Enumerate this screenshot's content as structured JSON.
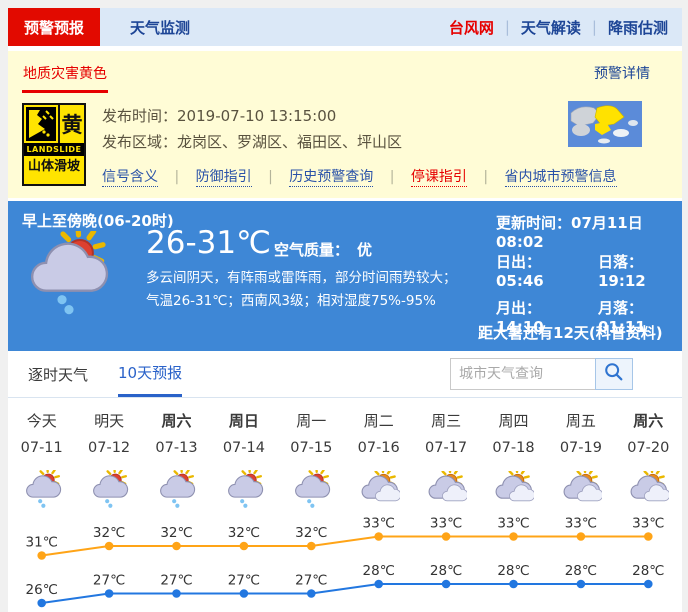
{
  "nav": {
    "tab_active": "预警预报",
    "tab_monitor": "天气监测",
    "links": [
      "台风网",
      "天气解读",
      "降雨估测"
    ]
  },
  "warning": {
    "category": "地质灾害黄色",
    "details_link": "预警详情",
    "sign": {
      "badge": "黄",
      "en": "LANDSLIDE",
      "name": "山体滑坡"
    },
    "publish_time_label": "发布时间：",
    "publish_time": "2019-07-10 13:15:00",
    "area_label": "发布区域：",
    "areas": "龙岗区、罗湖区、福田区、坪山区",
    "links": [
      "信号含义",
      "防御指引",
      "历史预警查询",
      "停课指引",
      "省内城市预警信息"
    ]
  },
  "current": {
    "period": "早上至傍晚(06-20时)",
    "update": "更新时间：07月11日 08:02",
    "temp": "26-31℃",
    "air_label": "空气质量：",
    "air_value": "优",
    "desc1": "多云间阴天，有阵雨或雷阵雨，部分时间雨势较大；",
    "desc2": "气温26-31℃；西南风3级；相对湿度75%-95%",
    "sun": [
      {
        "label": "日出：",
        "value": "05:46"
      },
      {
        "label": "日落：",
        "value": "19:12"
      },
      {
        "label": "月出：",
        "value": "14:10"
      },
      {
        "label": "月落：",
        "value": "01:11"
      }
    ],
    "countdown": "距大暑还有12天(科普资料)"
  },
  "tabs": {
    "hourly": "逐时天气",
    "ten_day": "10天预报"
  },
  "search": {
    "placeholder": "城市天气查询"
  },
  "colors": {
    "accent_red": "#e20a00",
    "navy_link": "#1d4596",
    "yellow_bg": "#fffcd6",
    "blue_bg": "#3e87d6",
    "high_line": "#ffa417",
    "low_line": "#2277e0"
  },
  "chart_data": {
    "type": "line",
    "title": "10天预报",
    "categories": [
      "今天",
      "明天",
      "周六",
      "周日",
      "周一",
      "周二",
      "周三",
      "周四",
      "周五",
      "周六"
    ],
    "bold": [
      false,
      false,
      true,
      true,
      false,
      false,
      false,
      false,
      false,
      true
    ],
    "dates": [
      "07-11",
      "07-12",
      "07-13",
      "07-14",
      "07-15",
      "07-16",
      "07-17",
      "07-18",
      "07-19",
      "07-20"
    ],
    "icons": [
      "shower",
      "shower",
      "shower",
      "shower",
      "shower",
      "cloudy",
      "cloudy",
      "cloudy",
      "cloudy",
      "cloudy"
    ],
    "unit": "℃",
    "ylim": [
      25,
      34
    ],
    "grid": false,
    "series": [
      {
        "name": "high",
        "color": "#ffa417",
        "values": [
          31,
          32,
          32,
          32,
          32,
          33,
          33,
          33,
          33,
          33
        ]
      },
      {
        "name": "low",
        "color": "#2277e0",
        "values": [
          26,
          27,
          27,
          27,
          27,
          28,
          28,
          28,
          28,
          28
        ]
      }
    ]
  }
}
